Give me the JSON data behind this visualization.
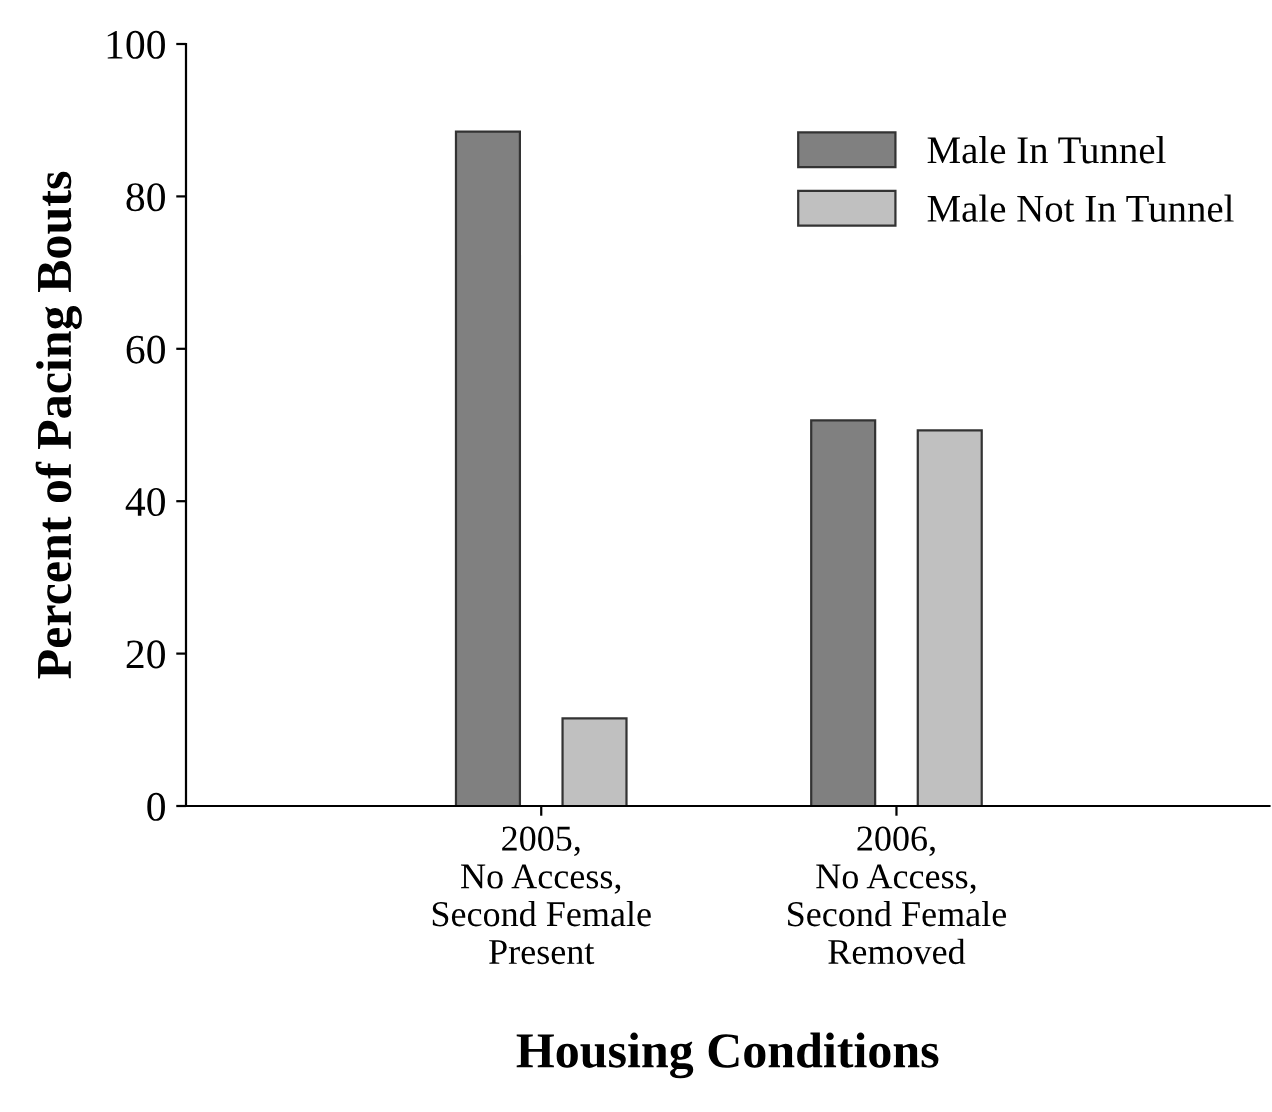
{
  "chart_data": {
    "type": "bar",
    "xlabel": "Housing Conditions",
    "ylabel": "Percent of Pacing Bouts",
    "categories": [
      "2005,\nNo Access,\nSecond Female\nPresent",
      "2006,\nNo Access,\nSecond Female\nRemoved"
    ],
    "series": [
      {
        "name": "Male In Tunnel",
        "color": "#808080",
        "values": [
          88.5,
          50.6
        ]
      },
      {
        "name": "Male Not In Tunnel",
        "color": "#c0c0c0",
        "values": [
          11.5,
          49.3
        ]
      }
    ],
    "ylim": [
      0,
      100
    ],
    "yticks": [
      0,
      20,
      40,
      60,
      80,
      100
    ],
    "grid": false,
    "legend": "top right"
  }
}
